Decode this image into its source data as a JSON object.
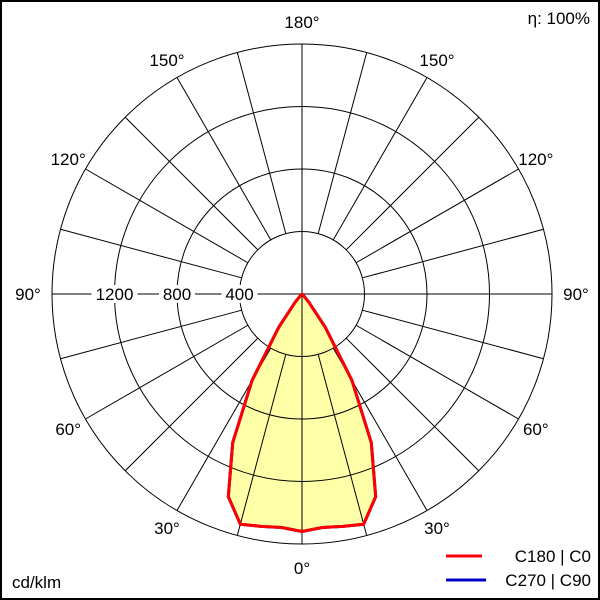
{
  "chart_data": {
    "type": "polar",
    "efficiency_label": "η: 100%",
    "unit_label": "cd/klm",
    "radial_ticks": [
      400,
      800,
      1200
    ],
    "radial_max": 1600,
    "angle_labels": [
      "180°",
      "150°",
      "120°",
      "90°",
      "60°",
      "30°",
      "0°"
    ],
    "angle_values": [
      180,
      150,
      120,
      90,
      60,
      30,
      0
    ],
    "angle_step": 15,
    "grid": true,
    "legend_placement": "bottom-right",
    "fill_color": "#ffff99",
    "series": [
      {
        "name": "C180 | C0",
        "color": "#ff0000",
        "gamma": [
          0,
          5,
          10,
          15,
          20,
          25,
          30,
          35,
          40,
          45,
          50,
          60,
          70,
          80,
          90
        ],
        "left": [
          1520,
          1500,
          1510,
          1525,
          1380,
          1050,
          640,
          260,
          70,
          10,
          0,
          0,
          0,
          0,
          0
        ],
        "right": [
          1520,
          1500,
          1510,
          1525,
          1380,
          1050,
          640,
          260,
          70,
          10,
          0,
          0,
          0,
          0,
          0
        ]
      },
      {
        "name": "C270 | C90",
        "color": "#0000cc",
        "gamma": [
          0,
          5,
          10,
          15,
          20,
          25,
          30,
          35,
          40,
          45,
          50,
          60,
          70,
          80,
          90
        ],
        "left": [
          1520,
          1500,
          1510,
          1525,
          1380,
          1050,
          640,
          260,
          70,
          10,
          0,
          0,
          0,
          0,
          0
        ],
        "right": [
          1520,
          1500,
          1510,
          1525,
          1380,
          1050,
          640,
          260,
          70,
          10,
          0,
          0,
          0,
          0,
          0
        ]
      }
    ]
  }
}
